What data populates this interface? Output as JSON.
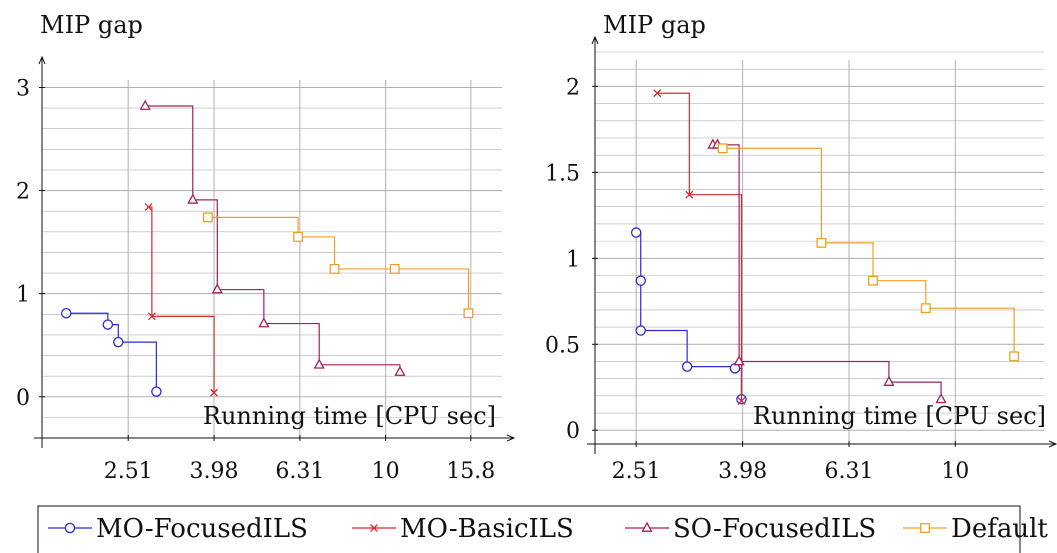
{
  "colors": {
    "MO-FocusedILS": "#2b2bd6",
    "MO-BasicILS": "#d62b2b",
    "SO-FocusedILS": "#a3205a",
    "Default": "#f0a020",
    "grid": "#b0b0b0",
    "axis": "#111111"
  },
  "legend": {
    "placement": "bottom",
    "entries": [
      {
        "name": "MO-FocusedILS",
        "marker": "circle"
      },
      {
        "name": "MO-BasicILS",
        "marker": "cross"
      },
      {
        "name": "SO-FocusedILS",
        "marker": "triangle"
      },
      {
        "name": "Default",
        "marker": "square"
      }
    ]
  },
  "chart_data": [
    {
      "type": "line",
      "step": "post",
      "title": "",
      "xlabel": "Running time [CPU sec]",
      "ylabel": "MIP gap",
      "x_scale": "log",
      "xlim": [
        1.58,
        19.5
      ],
      "ylim": [
        -0.4,
        3.15
      ],
      "xticks": [
        2.51,
        3.98,
        6.31,
        10,
        15.8
      ],
      "xtick_labels": [
        "2.51",
        "3.98",
        "6.31",
        "10",
        "15.8"
      ],
      "yticks": [
        0,
        1,
        2,
        3
      ],
      "ytick_labels": [
        "0",
        "1",
        "2",
        "3"
      ],
      "grid": true,
      "series": [
        {
          "name": "MO-FocusedILS",
          "marker": "circle",
          "points": [
            [
              1.8,
              0.81
            ],
            [
              2.25,
              0.7
            ],
            [
              2.38,
              0.53
            ],
            [
              2.92,
              0.05
            ]
          ]
        },
        {
          "name": "MO-BasicILS",
          "marker": "cross",
          "points": [
            [
              2.8,
              1.84
            ],
            [
              2.85,
              0.78
            ],
            [
              3.98,
              0.04
            ]
          ]
        },
        {
          "name": "SO-FocusedILS",
          "marker": "triangle",
          "points": [
            [
              2.75,
              2.82
            ],
            [
              3.55,
              1.91
            ],
            [
              4.05,
              1.04
            ],
            [
              5.2,
              0.71
            ],
            [
              7.0,
              0.31
            ],
            [
              10.8,
              0.24
            ]
          ]
        },
        {
          "name": "Default",
          "marker": "square",
          "points": [
            [
              3.85,
              1.74
            ],
            [
              6.25,
              1.55
            ],
            [
              7.6,
              1.24
            ],
            [
              10.5,
              1.24
            ],
            [
              15.6,
              0.81
            ]
          ]
        }
      ]
    },
    {
      "type": "line",
      "step": "post",
      "title": "",
      "xlabel": "Running time [CPU sec]",
      "ylabel": "MIP gap",
      "x_scale": "log",
      "xlim": [
        2.1,
        15.2
      ],
      "ylim": [
        -0.08,
        2.2
      ],
      "xticks": [
        2.51,
        3.98,
        6.31,
        10
      ],
      "xtick_labels": [
        "2.51",
        "3.98",
        "6.31",
        "10"
      ],
      "yticks": [
        0,
        0.5,
        1,
        1.5,
        2
      ],
      "ytick_labels": [
        "0",
        "0.5",
        "1",
        "1.5",
        "2"
      ],
      "grid": true,
      "series": [
        {
          "name": "MO-FocusedILS",
          "marker": "circle",
          "points": [
            [
              2.51,
              1.15
            ],
            [
              2.56,
              0.87
            ],
            [
              2.56,
              0.58
            ],
            [
              3.13,
              0.37
            ],
            [
              3.85,
              0.36
            ],
            [
              3.96,
              0.18
            ]
          ]
        },
        {
          "name": "MO-BasicILS",
          "marker": "cross",
          "points": [
            [
              2.75,
              1.96
            ],
            [
              3.16,
              1.37
            ],
            [
              3.96,
              0.17
            ]
          ]
        },
        {
          "name": "SO-FocusedILS",
          "marker": "triangle",
          "points": [
            [
              3.5,
              1.66
            ],
            [
              3.57,
              1.66
            ],
            [
              3.92,
              0.4
            ],
            [
              7.5,
              0.28
            ],
            [
              9.4,
              0.18
            ]
          ]
        },
        {
          "name": "Default",
          "marker": "square",
          "points": [
            [
              3.65,
              1.64
            ],
            [
              5.6,
              1.09
            ],
            [
              7.0,
              0.87
            ],
            [
              8.8,
              0.71
            ],
            [
              12.9,
              0.43
            ]
          ]
        }
      ]
    }
  ]
}
